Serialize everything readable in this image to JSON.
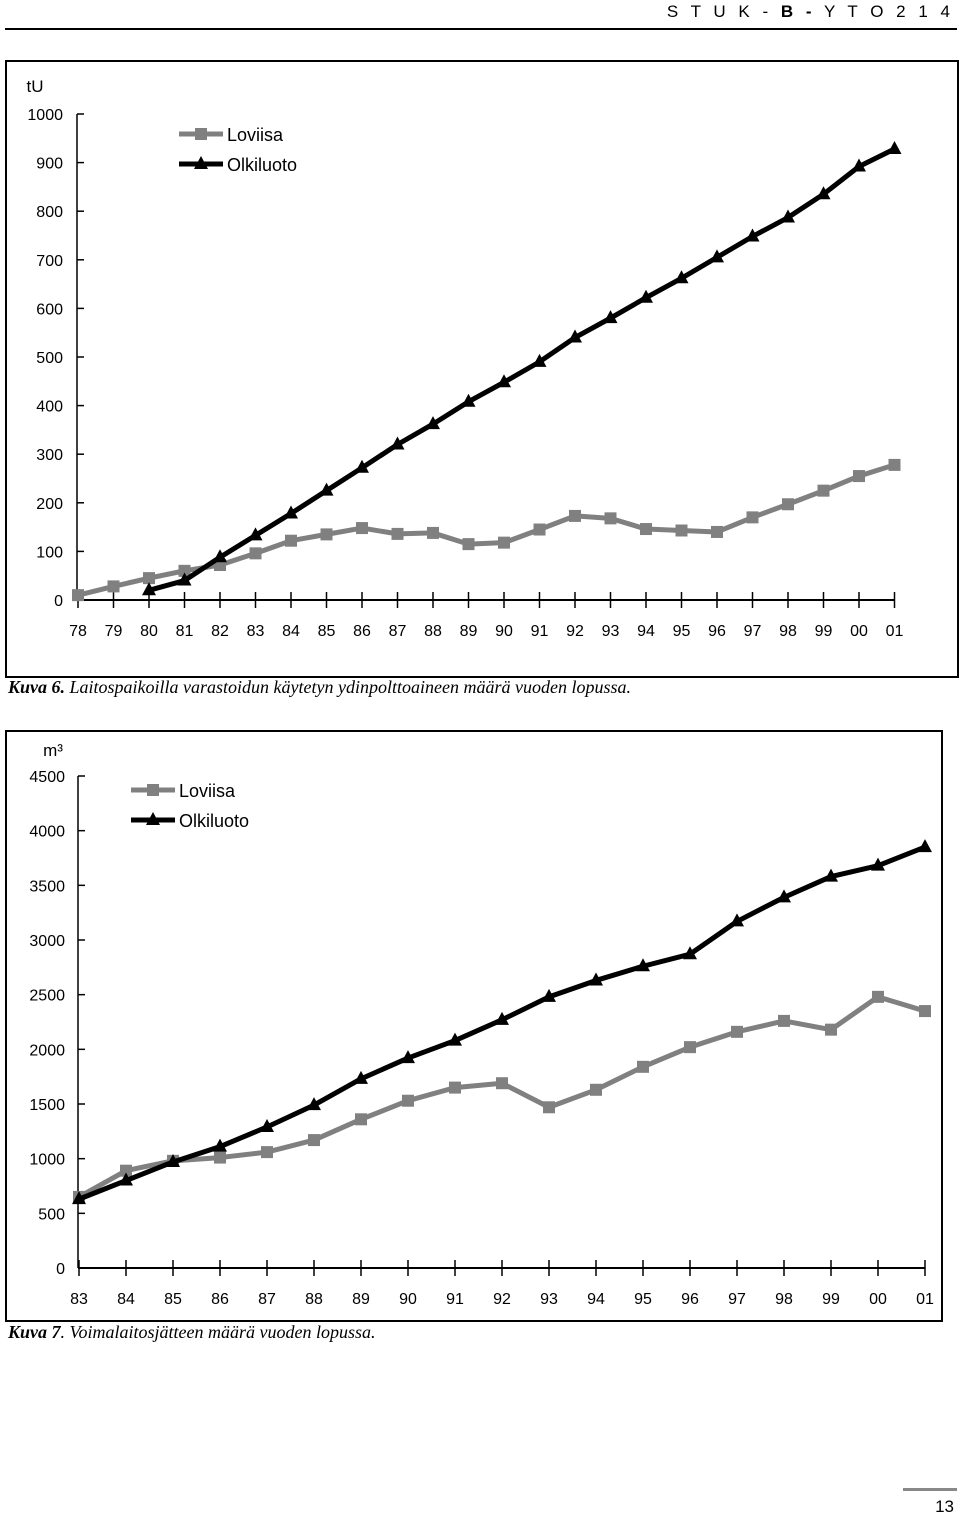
{
  "header": {
    "series": "S T U K -",
    "code": "B -",
    "number": "Y T O  2 1 4"
  },
  "chart_data": [
    {
      "type": "line",
      "ylabel": "tU",
      "ylim": [
        0,
        1000
      ],
      "yticks": [
        0,
        100,
        200,
        300,
        400,
        500,
        600,
        700,
        800,
        900,
        1000
      ],
      "categories": [
        "78",
        "79",
        "80",
        "81",
        "82",
        "83",
        "84",
        "85",
        "86",
        "87",
        "88",
        "89",
        "90",
        "91",
        "92",
        "93",
        "94",
        "95",
        "96",
        "97",
        "98",
        "99",
        "00",
        "01"
      ],
      "legend_position": "top-left",
      "series": [
        {
          "name": "Loviisa",
          "color": "#808080",
          "marker": "square",
          "values": [
            10,
            28,
            45,
            60,
            72,
            96,
            122,
            135,
            148,
            136,
            138,
            115,
            118,
            145,
            173,
            168,
            146,
            143,
            140,
            170,
            197,
            225,
            255,
            278
          ]
        },
        {
          "name": "Olkiluoto",
          "color": "#000000",
          "marker": "triangle",
          "values": [
            null,
            null,
            20,
            40,
            88,
            133,
            178,
            225,
            272,
            320,
            362,
            408,
            448,
            490,
            540,
            580,
            622,
            662,
            705,
            748,
            787,
            835,
            892,
            928
          ]
        }
      ]
    },
    {
      "type": "line",
      "ylabel": "m³",
      "ylim": [
        0,
        4500
      ],
      "yticks": [
        0,
        500,
        1000,
        1500,
        2000,
        2500,
        3000,
        3500,
        4000,
        4500
      ],
      "categories": [
        "83",
        "84",
        "85",
        "86",
        "87",
        "88",
        "89",
        "90",
        "91",
        "92",
        "93",
        "94",
        "95",
        "96",
        "97",
        "98",
        "99",
        "00",
        "01"
      ],
      "legend_position": "top-left",
      "series": [
        {
          "name": "Loviisa",
          "color": "#808080",
          "marker": "square",
          "values": [
            650,
            890,
            980,
            1010,
            1060,
            1170,
            1360,
            1530,
            1650,
            1690,
            1470,
            1630,
            1840,
            2020,
            2160,
            2260,
            2180,
            2480,
            2350
          ]
        },
        {
          "name": "Olkiluoto",
          "color": "#000000",
          "marker": "triangle",
          "values": [
            630,
            800,
            970,
            1110,
            1290,
            1490,
            1730,
            1920,
            2080,
            2270,
            2480,
            2630,
            2760,
            2870,
            3170,
            3390,
            3580,
            3680,
            3850
          ]
        }
      ]
    }
  ],
  "captions": [
    {
      "label": "Kuva 6.",
      "text": " Laitospaikoilla varastoidun käytetyn ydinpolttoaineen määrä vuoden lopussa."
    },
    {
      "label": "Kuva 7",
      "text": ". Voimalaitosjätteen määrä vuoden lopussa."
    }
  ],
  "page_number": "13"
}
